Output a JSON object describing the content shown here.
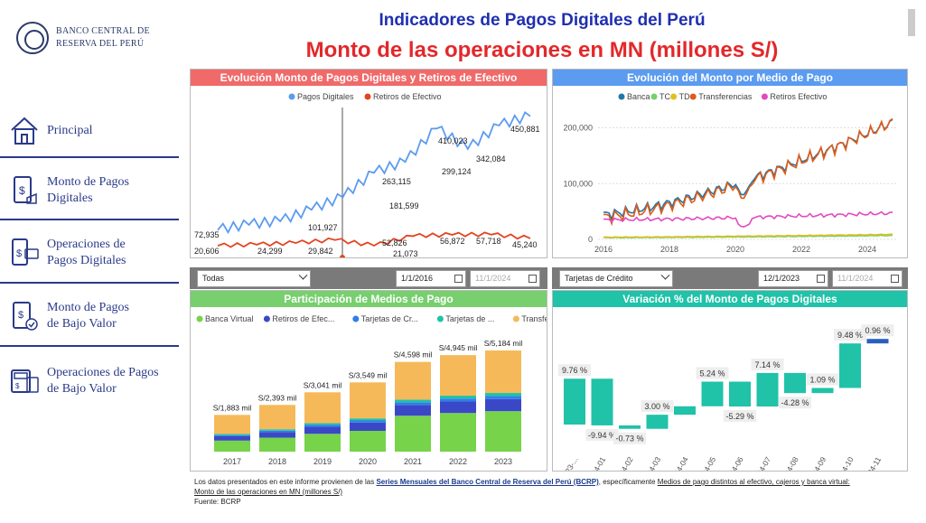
{
  "logo": {
    "line1": "BANCO CENTRAL DE",
    "line2": "RESERVA DEL PERÚ"
  },
  "header": {
    "title": "Indicadores de Pagos Digitales del Perú",
    "subtitle": "Monto de las operaciones en MN (millones S/)"
  },
  "sidebar": {
    "items": [
      {
        "label": "Principal",
        "icon": "home-icon"
      },
      {
        "label": "Monto de Pagos\nDigitales",
        "icon": "receipt-phone-icon"
      },
      {
        "label": "Operaciones de\nPagos Digitales",
        "icon": "phone-card-icon"
      },
      {
        "label": "Monto de Pagos\nde Bajo Valor",
        "icon": "phone-coin-icon"
      },
      {
        "label": "Operaciones de Pagos\n de Bajo Valor",
        "icon": "pos-terminal-icon"
      }
    ]
  },
  "panels": {
    "p1": {
      "title": "Evolución Monto de Pagos Digitales y Retiros de Efectivo",
      "color": "#f06a6a"
    },
    "p2": {
      "title": "Evolución del Monto por Medio de Pago",
      "color": "#5b9bf0"
    },
    "p3": {
      "title": "Participación de Medios de Pago",
      "color": "#77cf6e"
    },
    "p4": {
      "title": "Variación % del Monto de Pagos Digitales",
      "color": "#20c2a8"
    }
  },
  "filters": {
    "left": {
      "dropdown": "Todas",
      "date_from": "1/1/2016",
      "date_to": "11/1/2024"
    },
    "right": {
      "dropdown": "Tarjetas de Crédito",
      "date_from": "12/1/2023",
      "date_to": "11/1/2024"
    }
  },
  "footer": {
    "pre": "Los datos presentados en este informe provienen de las ",
    "link": "Series Mensuales del Banco Central de Reserva del Perú (BCRP)",
    "mid": ", específicamente ",
    "underlined1": "Medios de pago distintos al efectivo, cajeros y banca virtual:",
    "underlined2": "Monto de las operaciones en MN (millones S/)",
    "source": "Fuente: BCRP"
  },
  "chart_data": [
    {
      "type": "line",
      "title": "Evolución Monto de Pagos Digitales y Retiros de Efectivo",
      "series": [
        {
          "name": "Pagos Digitales",
          "color": "#5b9bf0",
          "points": [
            [
              "2016",
              72935
            ],
            [
              "2017",
              90000
            ],
            [
              "2018",
              101927
            ],
            [
              "2019",
              140000
            ],
            [
              "2020",
              181599
            ],
            [
              "2021",
              263115
            ],
            [
              "2022",
              299124
            ],
            [
              "2022-06",
              410023
            ],
            [
              "2023",
              342084
            ],
            [
              "2024",
              420000
            ],
            [
              "2024-11",
              450881
            ]
          ],
          "labels": [
            "72,935",
            "101,927",
            "181,599",
            "263,115",
            "299,124",
            "410,023",
            "342,084",
            "450,881"
          ]
        },
        {
          "name": "Retiros de Efectivo",
          "color": "#e2451f",
          "points": [
            [
              "2016",
              20606
            ],
            [
              "2017",
              24299
            ],
            [
              "2018",
              29842
            ],
            [
              "2019",
              40000
            ],
            [
              "2020",
              21073
            ],
            [
              "2021",
              52826
            ],
            [
              "2022",
              56872
            ],
            [
              "2023",
              57718
            ],
            [
              "2024-11",
              45240
            ]
          ],
          "labels": [
            "20,606",
            "24,299",
            "29,842",
            "52,826",
            "21,073",
            "56,872",
            "57,718",
            "45,240"
          ]
        }
      ]
    },
    {
      "type": "line",
      "title": "Evolución del Monto por Medio de Pago",
      "x_ticks": [
        "2016",
        "2018",
        "2020",
        "2022",
        "2024"
      ],
      "y_ticks": [
        "0",
        "100,000",
        "200,000"
      ],
      "series": [
        {
          "name": "Banca",
          "color": "#1f77a8"
        },
        {
          "name": "TC",
          "color": "#77cf6e"
        },
        {
          "name": "TD",
          "color": "#e0c020"
        },
        {
          "name": "Transferencias",
          "color": "#e05a18"
        },
        {
          "name": "Retiros Efectivo",
          "color": "#e24ac0"
        }
      ]
    },
    {
      "type": "bar",
      "title": "Participación de Medios de Pago",
      "categories": [
        "2017",
        "2018",
        "2019",
        "2020",
        "2021",
        "2022",
        "2023"
      ],
      "totals": [
        "S/1,883 mil",
        "S/2,393 mil",
        "S/3,041 mil",
        "S/3,549 mil",
        "S/4,598 mil",
        "S/4,945 mil",
        "S/5,184 mil"
      ],
      "total_values": [
        1883,
        2393,
        3041,
        3549,
        4598,
        4945,
        5184
      ],
      "legend": [
        {
          "name": "Banca Virtual",
          "color": "#77d34a"
        },
        {
          "name": "Retiros de Efec...",
          "color": "#3a48c8"
        },
        {
          "name": "Tarjetas de Cr...",
          "color": "#2f7fe8"
        },
        {
          "name": "Tarjetas de ...",
          "color": "#20c2a8"
        },
        {
          "name": "Transferencias",
          "color": "#f6b95a"
        }
      ]
    },
    {
      "type": "bar",
      "title": "Variación % del Monto de Pagos Digitales",
      "categories": [
        "2023-...",
        "2024-01",
        "2024-02",
        "2024-03",
        "2024-04",
        "2024-05",
        "2024-06",
        "2024-07",
        "2024-08",
        "2024-09",
        "2024-10",
        "2024-11"
      ],
      "values": [
        9.76,
        -9.94,
        -0.73,
        3.0,
        1.8,
        5.24,
        -5.29,
        7.14,
        -4.28,
        1.09,
        9.48,
        0.96
      ],
      "labels": [
        "9.76 %",
        "-9.94 %",
        "-0.73 %",
        "3.00 %",
        "",
        "5.24 %",
        "-5.29 %",
        "7.14 %",
        "-4.28 %",
        "1.09 %",
        "9.48 %",
        "0.96 %"
      ]
    }
  ]
}
